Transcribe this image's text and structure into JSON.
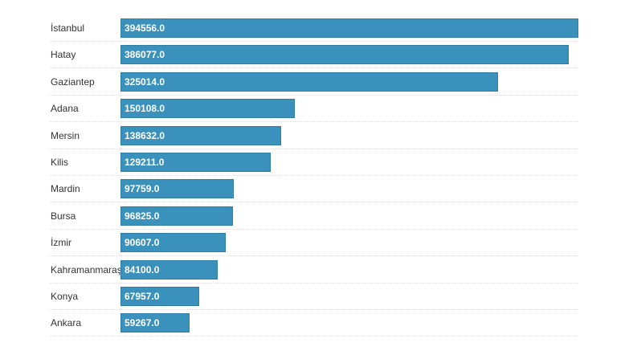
{
  "chart_data": {
    "type": "bar",
    "orientation": "horizontal",
    "categories": [
      "İstanbul",
      "Hatay",
      "Gaziantep",
      "Adana",
      "Mersin",
      "Kilis",
      "Mardin",
      "Bursa",
      "İzmir",
      "Kahramanmaraş",
      "Konya",
      "Ankara"
    ],
    "values": [
      394556.0,
      386077.0,
      325014.0,
      150108.0,
      138632.0,
      129211.0,
      97759.0,
      96825.0,
      90607.0,
      84100.0,
      67957.0,
      59267.0
    ],
    "value_labels": [
      "394556.0",
      "386077.0",
      "325014.0",
      "150108.0",
      "138632.0",
      "129211.0",
      "97759.0",
      "96825.0",
      "90607.0",
      "84100.0",
      "67957.0",
      "59267.0"
    ],
    "xlim": [
      0,
      394556
    ],
    "grid": false,
    "bar_color": "#3a91bb"
  }
}
